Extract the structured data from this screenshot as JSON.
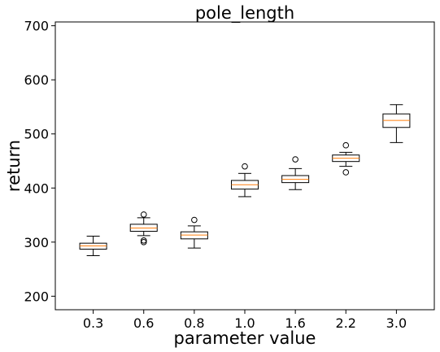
{
  "chart_data": {
    "type": "box",
    "title": "pole_length",
    "xlabel": "parameter value",
    "ylabel": "return",
    "ylim": [
      175,
      707
    ],
    "yticks": [
      200,
      300,
      400,
      500,
      600,
      700
    ],
    "categories": [
      "0.3",
      "0.6",
      "0.8",
      "1.0",
      "1.6",
      "2.2",
      "3.0"
    ],
    "boxes": [
      {
        "whisker_low": 275,
        "q1": 287,
        "median": 293,
        "q3": 298,
        "whisker_high": 311,
        "outliers": []
      },
      {
        "whisker_low": 312,
        "q1": 320,
        "median": 326,
        "q3": 333,
        "whisker_high": 345,
        "outliers": [
          351,
          303,
          300
        ]
      },
      {
        "whisker_low": 289,
        "q1": 306,
        "median": 313,
        "q3": 319,
        "whisker_high": 330,
        "outliers": [
          341
        ]
      },
      {
        "whisker_low": 384,
        "q1": 398,
        "median": 406,
        "q3": 414,
        "whisker_high": 427,
        "outliers": [
          440
        ]
      },
      {
        "whisker_low": 397,
        "q1": 410,
        "median": 416,
        "q3": 423,
        "whisker_high": 436,
        "outliers": [
          453
        ]
      },
      {
        "whisker_low": 440,
        "q1": 449,
        "median": 455,
        "q3": 461,
        "whisker_high": 466,
        "outliers": [
          479,
          429
        ]
      },
      {
        "whisker_low": 484,
        "q1": 512,
        "median": 525,
        "q3": 537,
        "whisker_high": 554,
        "outliers": []
      }
    ],
    "grid": false,
    "colors": {
      "box": "#000000",
      "median": "#ff7f0e",
      "outlier": "#000000"
    }
  }
}
